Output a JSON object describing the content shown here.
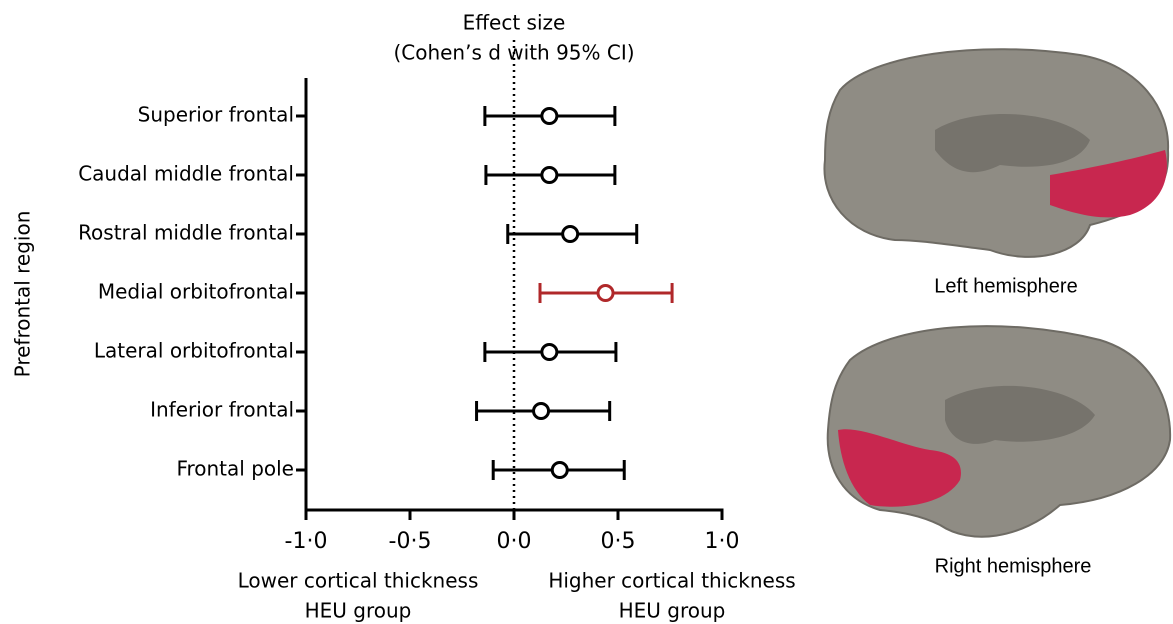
{
  "chart_data": {
    "type": "forest",
    "title": "Effect size",
    "subtitle": "(Cohen’s d with 95% CI)",
    "y_label": "Prefrontal region",
    "categories": [
      "Superior frontal",
      "Caudal middle frontal",
      "Rostral middle frontal",
      "Medial orbitofrontal",
      "Lateral orbitofrontal",
      "Inferior frontal",
      "Frontal pole"
    ],
    "values": [
      0.17,
      0.17,
      0.27,
      0.44,
      0.17,
      0.13,
      0.22
    ],
    "lower": [
      -0.14,
      -0.135,
      -0.03,
      0.125,
      -0.14,
      -0.18,
      -0.1
    ],
    "upper": [
      0.485,
      0.485,
      0.59,
      0.76,
      0.49,
      0.46,
      0.53
    ],
    "colors": [
      "#000000",
      "#000000",
      "#000000",
      "#b0282a",
      "#000000",
      "#000000",
      "#000000"
    ],
    "xlim": [
      -1,
      1
    ],
    "xticks": [
      {
        "value": -1,
        "label": "-1·0"
      },
      {
        "value": -0.5,
        "label": "-0·5"
      },
      {
        "value": 0,
        "label": "0·0"
      },
      {
        "value": 0.5,
        "label": "0·5"
      },
      {
        "value": 1,
        "label": "1·0"
      }
    ],
    "reference_line": 0,
    "annotations": [
      "Lower cortical thickness",
      "HEU group",
      "Higher cortical thickness",
      "HEU group"
    ]
  },
  "brain_panels": {
    "left_label": "Left hemisphere",
    "right_label": "Right hemisphere"
  }
}
